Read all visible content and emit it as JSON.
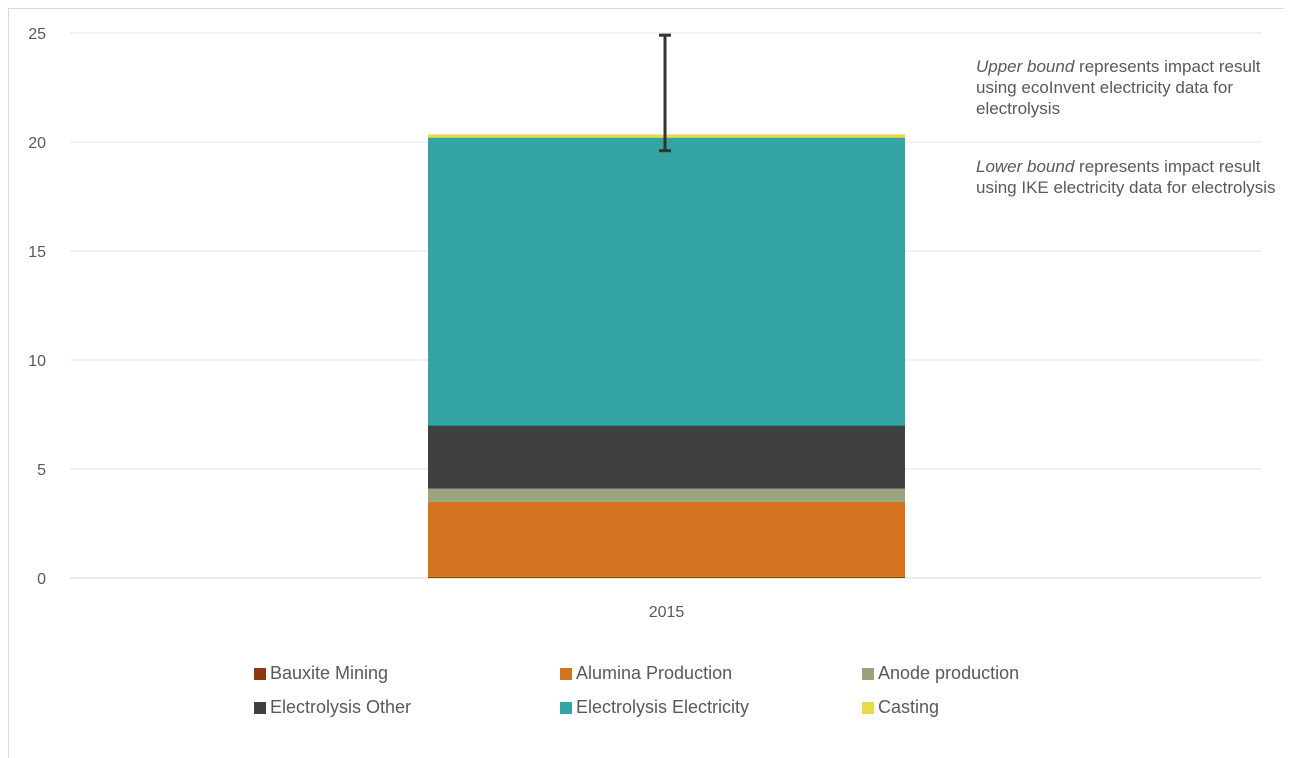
{
  "chart_data": {
    "type": "bar",
    "stacked": true,
    "categories": [
      "2015"
    ],
    "series": [
      {
        "name": "Bauxite Mining",
        "values": [
          0.05
        ],
        "color": "#8b3a0f"
      },
      {
        "name": "Alumina Production",
        "values": [
          3.45
        ],
        "color": "#d47420"
      },
      {
        "name": "Anode production",
        "values": [
          0.6
        ],
        "color": "#9aa37c"
      },
      {
        "name": "Electrolysis Other",
        "values": [
          2.9
        ],
        "color": "#404040"
      },
      {
        "name": "Electrolysis Electricity",
        "values": [
          13.2
        ],
        "color": "#33a3a3"
      },
      {
        "name": "Casting",
        "values": [
          0.15
        ],
        "color": "#e6dc4a"
      }
    ],
    "error_bar": {
      "lower": 19.6,
      "upper": 24.9
    },
    "ylim": [
      0,
      25
    ],
    "yticks": [
      0,
      5,
      10,
      15,
      20,
      25
    ],
    "grid": true,
    "legend_position": "bottom",
    "title": "",
    "xlabel": "",
    "ylabel": ""
  },
  "annotations": {
    "upper_em": "Upper bound",
    "upper_rest": " represents impact result using ecoInvent electricity data for electrolysis",
    "lower_em": "Lower bound",
    "lower_rest": " represents impact result using IKE electricity data for electrolysis"
  }
}
